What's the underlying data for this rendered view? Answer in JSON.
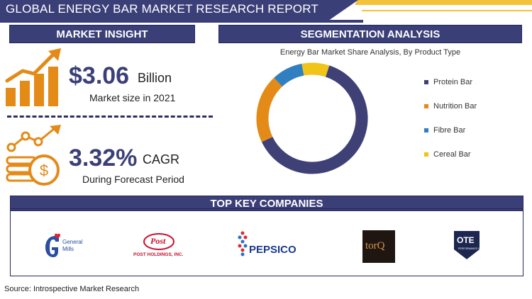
{
  "header": {
    "title": "GLOBAL ENERGY BAR MARKET RESEARCH REPORT"
  },
  "market_insight": {
    "heading": "MARKET INSIGHT",
    "market_size_value": "$3.06",
    "market_size_unit": "Billion",
    "market_size_caption": "Market size in 2021",
    "cagr_value": "3.32%",
    "cagr_unit": "CAGR",
    "cagr_caption": "During Forecast Period"
  },
  "segmentation": {
    "heading": "SEGMENTATION ANALYSIS"
  },
  "chart_data": {
    "type": "pie",
    "donut": true,
    "title": "Energy Bar Market Share Analysis, By Product Type",
    "legend_position": "right",
    "categories": [
      "Protein Bar",
      "Nutrition Bar",
      "Fibre Bar",
      "Cereal Bar"
    ],
    "values": [
      63,
      20,
      9,
      8
    ],
    "colors": [
      "#3f4076",
      "#e38a17",
      "#2f7fc1",
      "#f0c419"
    ]
  },
  "companies": {
    "heading": "TOP KEY COMPANIES",
    "logos": [
      {
        "icon": "general-mills-logo",
        "text_1": "General",
        "text_2": "Mills"
      },
      {
        "icon": "post-holdings-logo",
        "text_1": "Post",
        "text_2": "POST HOLDINGS, INC."
      },
      {
        "icon": "pepsico-logo",
        "text_1": "PEPSICO"
      },
      {
        "icon": "torq-logo",
        "text_1": "torQ"
      },
      {
        "icon": "ote-logo",
        "text_1": "OTE",
        "text_2": "PERFORMANCE NUTRITION"
      }
    ]
  },
  "footer": {
    "source": "Source: Introspective Market Research"
  }
}
